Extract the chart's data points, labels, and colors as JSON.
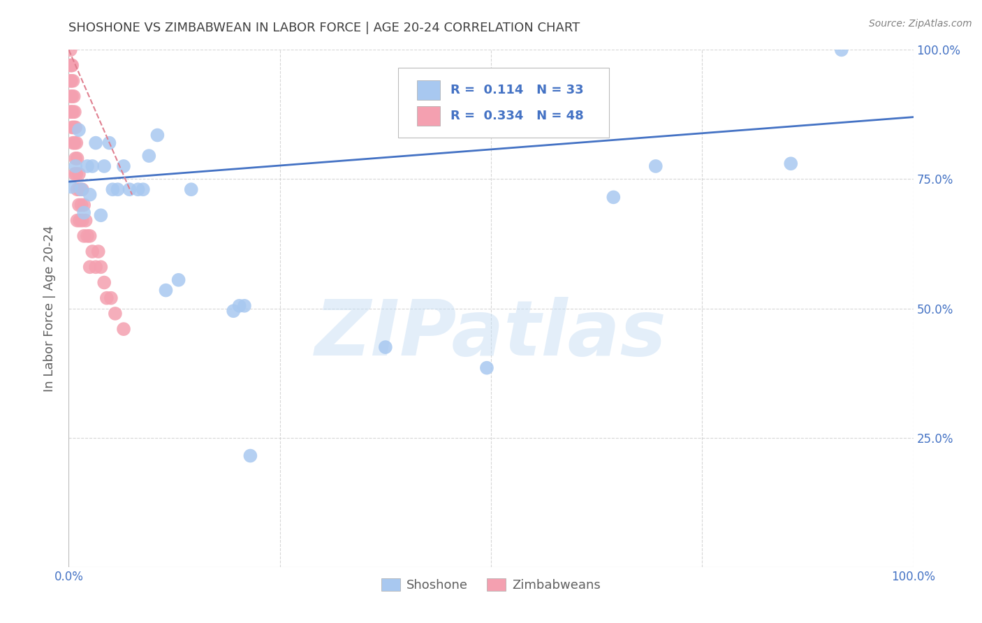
{
  "title": "SHOSHONE VS ZIMBABWEAN IN LABOR FORCE | AGE 20-24 CORRELATION CHART",
  "source": "Source: ZipAtlas.com",
  "ylabel": "In Labor Force | Age 20-24",
  "xlim": [
    0,
    1
  ],
  "ylim": [
    0,
    1
  ],
  "watermark": "ZIPatlas",
  "shoshone_color": "#a8c8f0",
  "zimbabwean_color": "#f4a0b0",
  "shoshone_R": 0.114,
  "shoshone_N": 33,
  "zimbabwean_R": 0.334,
  "zimbabwean_N": 48,
  "shoshone_line_color": "#4472c4",
  "zimbabwean_line_color": "#e08090",
  "legend_text_color": "#4472c4",
  "background_color": "#ffffff",
  "grid_color": "#cccccc",
  "title_color": "#404040",
  "axis_label_color": "#606060",
  "tick_color": "#4472c4",
  "shoshone_points_x": [
    0.003,
    0.008,
    0.012,
    0.015,
    0.018,
    0.022,
    0.025,
    0.028,
    0.032,
    0.038,
    0.042,
    0.048,
    0.052,
    0.058,
    0.065,
    0.072,
    0.082,
    0.088,
    0.095,
    0.105,
    0.115,
    0.13,
    0.145,
    0.195,
    0.202,
    0.208,
    0.215,
    0.375,
    0.495,
    0.645,
    0.695,
    0.855,
    0.915
  ],
  "shoshone_points_y": [
    0.735,
    0.775,
    0.845,
    0.73,
    0.685,
    0.775,
    0.72,
    0.775,
    0.82,
    0.68,
    0.775,
    0.82,
    0.73,
    0.73,
    0.775,
    0.73,
    0.73,
    0.73,
    0.795,
    0.835,
    0.535,
    0.555,
    0.73,
    0.495,
    0.505,
    0.505,
    0.215,
    0.425,
    0.385,
    0.715,
    0.775,
    0.78,
    1.0
  ],
  "zimbabwean_points_x": [
    0.002,
    0.002,
    0.002,
    0.002,
    0.002,
    0.003,
    0.003,
    0.003,
    0.004,
    0.004,
    0.004,
    0.005,
    0.005,
    0.005,
    0.006,
    0.006,
    0.007,
    0.007,
    0.007,
    0.008,
    0.008,
    0.009,
    0.009,
    0.01,
    0.01,
    0.01,
    0.012,
    0.012,
    0.013,
    0.013,
    0.015,
    0.016,
    0.016,
    0.018,
    0.018,
    0.02,
    0.022,
    0.025,
    0.025,
    0.028,
    0.032,
    0.035,
    0.038,
    0.042,
    0.045,
    0.05,
    0.055,
    0.065
  ],
  "zimbabwean_points_y": [
    1.0,
    0.97,
    0.94,
    0.91,
    0.88,
    0.97,
    0.94,
    0.88,
    0.97,
    0.91,
    0.85,
    0.94,
    0.88,
    0.82,
    0.91,
    0.85,
    0.88,
    0.82,
    0.76,
    0.85,
    0.79,
    0.82,
    0.76,
    0.79,
    0.73,
    0.67,
    0.76,
    0.7,
    0.73,
    0.67,
    0.7,
    0.73,
    0.67,
    0.7,
    0.64,
    0.67,
    0.64,
    0.64,
    0.58,
    0.61,
    0.58,
    0.61,
    0.58,
    0.55,
    0.52,
    0.52,
    0.49,
    0.46
  ],
  "shoshone_trendline_x": [
    0.0,
    1.0
  ],
  "shoshone_trendline_y": [
    0.745,
    0.87
  ],
  "zimbabwean_trendline_x": [
    0.0,
    0.075
  ],
  "zimbabwean_trendline_y": [
    1.0,
    0.72
  ]
}
